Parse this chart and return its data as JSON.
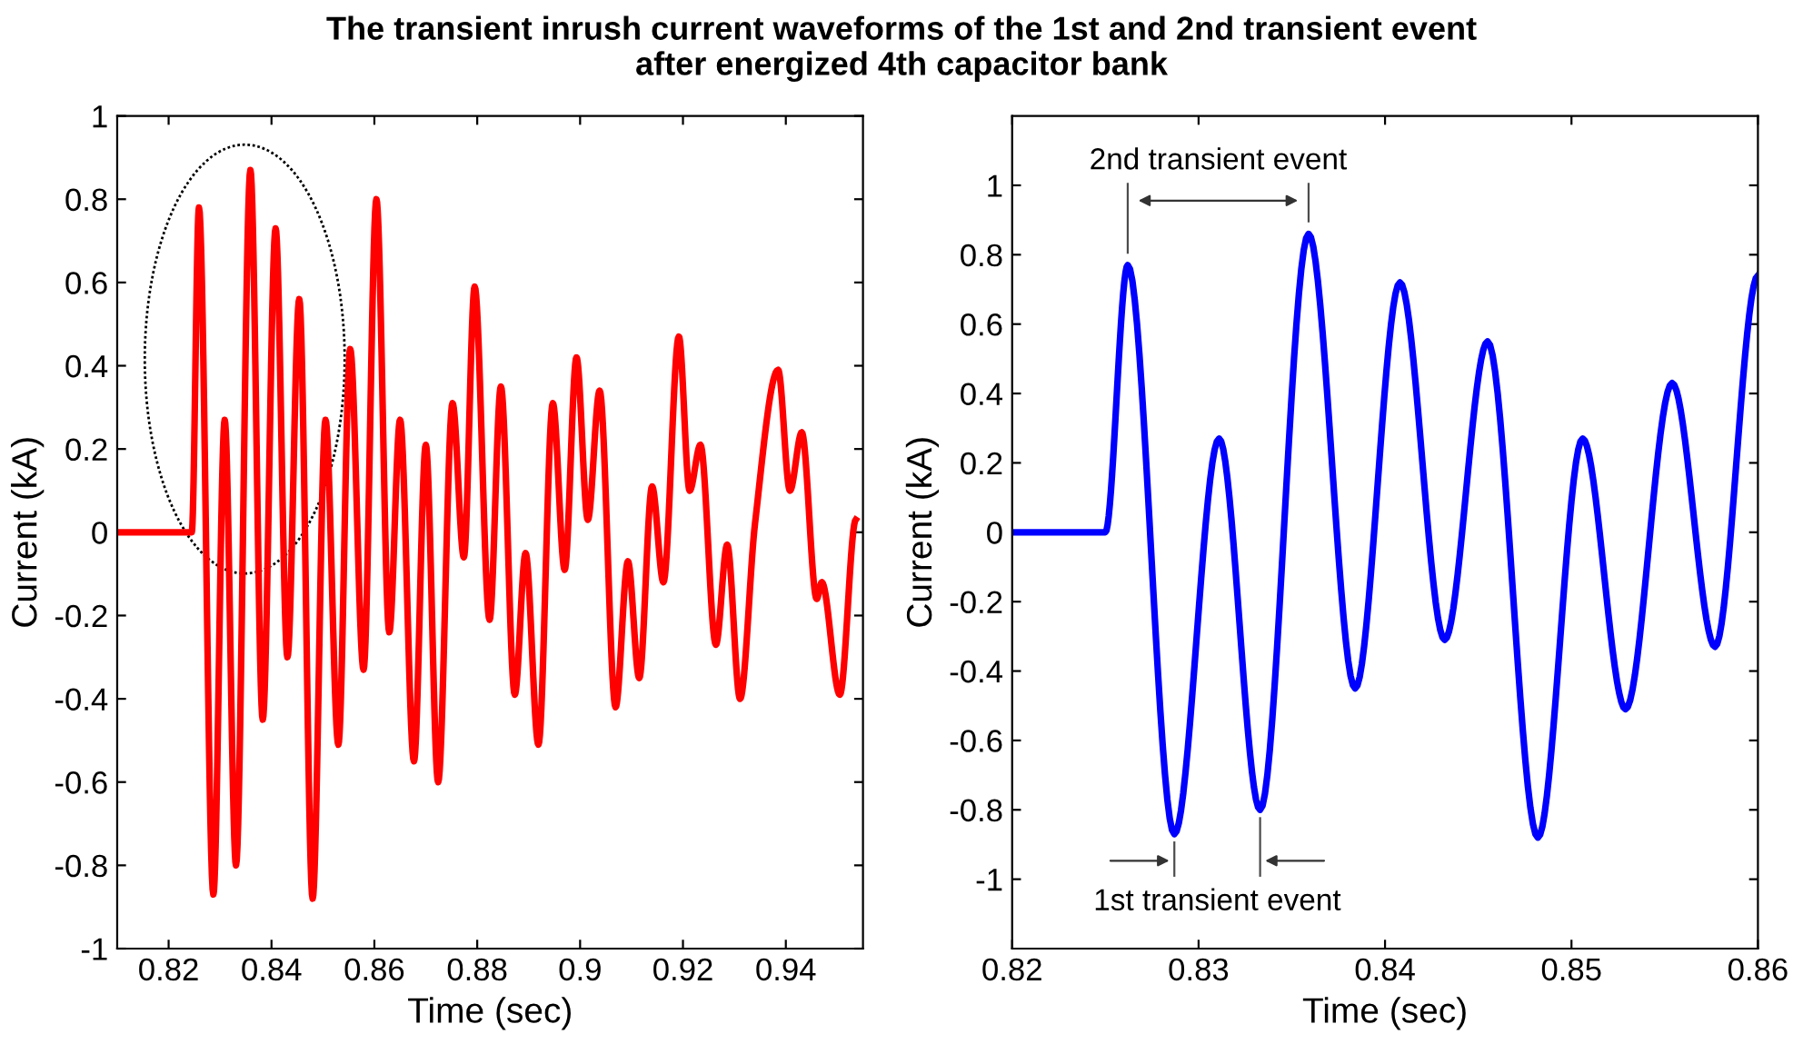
{
  "chart_data": [
    {
      "type": "line",
      "title": "The transient inrush current waveforms of the 1st and 2nd transient event\nafter energized 4th capacitor bank",
      "xlabel": "Time (sec)",
      "ylabel": "Current (kA)",
      "xlim": [
        0.81,
        0.955
      ],
      "xticks": [
        0.82,
        0.84,
        0.86,
        0.88,
        0.9,
        0.92,
        0.94
      ],
      "ylim": [
        -1,
        1
      ],
      "yticks": [
        -1,
        -0.8,
        -0.6,
        -0.4,
        -0.2,
        0,
        0.2,
        0.4,
        0.6,
        0.8,
        1
      ],
      "grid": false,
      "legend": false,
      "series": [
        {
          "color": "#ff0000",
          "x": [
            0.81,
            0.8245,
            0.8259,
            0.8287,
            0.8309,
            0.8331,
            0.8359,
            0.8383,
            0.8408,
            0.8431,
            0.8454,
            0.848,
            0.8505,
            0.853,
            0.8553,
            0.8579,
            0.8604,
            0.8629,
            0.865,
            0.8677,
            0.87,
            0.8724,
            0.8752,
            0.8774,
            0.8795,
            0.8824,
            0.8846,
            0.8873,
            0.8894,
            0.8919,
            0.8947,
            0.897,
            0.8993,
            0.9015,
            0.9038,
            0.9069,
            0.9093,
            0.9115,
            0.914,
            0.9162,
            0.9192,
            0.9213,
            0.9234,
            0.9264,
            0.9286,
            0.9311,
            0.934,
            0.9385,
            0.9408,
            0.9431,
            0.946,
            0.947,
            0.9505,
            0.9536
          ],
          "values": [
            0,
            0,
            0.78,
            -0.87,
            0.27,
            -0.8,
            0.87,
            -0.45,
            0.73,
            -0.3,
            0.56,
            -0.88,
            0.27,
            -0.51,
            0.44,
            -0.33,
            0.8,
            -0.24,
            0.27,
            -0.55,
            0.21,
            -0.6,
            0.31,
            -0.06,
            0.59,
            -0.21,
            0.35,
            -0.39,
            -0.05,
            -0.51,
            0.31,
            -0.09,
            0.42,
            0.03,
            0.34,
            -0.42,
            -0.07,
            -0.35,
            0.11,
            -0.12,
            0.47,
            0.1,
            0.21,
            -0.27,
            -0.03,
            -0.4,
            0.02,
            0.39,
            0.1,
            0.24,
            -0.16,
            -0.12,
            -0.39,
            0.03
          ]
        }
      ]
    },
    {
      "type": "line",
      "xlabel": "Time (sec)",
      "ylabel": "Current (kA)",
      "xlim": [
        0.82,
        0.86
      ],
      "xticks": [
        0.82,
        0.83,
        0.84,
        0.85,
        0.86
      ],
      "ylim": [
        -1.2,
        1.2
      ],
      "yticks": [
        -1,
        -0.8,
        -0.6,
        -0.4,
        -0.2,
        0,
        0.2,
        0.4,
        0.6,
        0.8,
        1
      ],
      "grid": false,
      "legend": false,
      "annotations": [
        {
          "text": "2nd transient event",
          "x": 0.8359,
          "y": 0.86
        },
        {
          "text": "1st transient event",
          "x": 0.8287,
          "y": -0.87
        }
      ],
      "series": [
        {
          "color": "#0000ff",
          "x": [
            0.82,
            0.825,
            0.8262,
            0.8287,
            0.8311,
            0.8333,
            0.8359,
            0.8384,
            0.8408,
            0.8432,
            0.8455,
            0.8482,
            0.8506,
            0.8529,
            0.8554,
            0.8577,
            0.86
          ],
          "values": [
            0,
            0,
            0.77,
            -0.87,
            0.27,
            -0.8,
            0.86,
            -0.45,
            0.72,
            -0.31,
            0.55,
            -0.88,
            0.27,
            -0.51,
            0.43,
            -0.33,
            0.74
          ]
        }
      ]
    }
  ]
}
